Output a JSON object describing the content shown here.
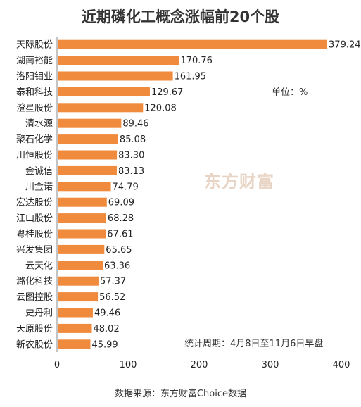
{
  "chart_data": {
    "type": "bar",
    "orientation": "horizontal",
    "title": "近期磷化工概念涨幅前20个股",
    "categories": [
      "天际股份",
      "湖南裕能",
      "洛阳钼业",
      "泰和科技",
      "澄星股份",
      "清水源",
      "聚石化学",
      "川恒股份",
      "金诚信",
      "川金诺",
      "宏达股份",
      "江山股份",
      "粤桂股份",
      "兴发集团",
      "云天化",
      "潞化科技",
      "云图控股",
      "史丹利",
      "天原股份",
      "新农股份"
    ],
    "values": [
      379.24,
      170.76,
      161.95,
      129.67,
      120.08,
      89.46,
      85.08,
      83.3,
      83.13,
      74.79,
      69.09,
      68.28,
      67.61,
      65.65,
      63.36,
      57.37,
      56.52,
      49.46,
      48.02,
      45.99
    ],
    "value_labels": [
      "379.24",
      "170.76",
      "161.95",
      "129.67",
      "120.08",
      "89.46",
      "85.08",
      "83.30",
      "83.13",
      "74.79",
      "69.09",
      "68.28",
      "67.61",
      "65.65",
      "63.36",
      "57.37",
      "56.52",
      "49.46",
      "48.02",
      "45.99"
    ],
    "xlim": [
      0,
      400
    ],
    "xticks": [
      "0",
      "100",
      "200",
      "300",
      "400"
    ],
    "bar_color": "#f08a3c",
    "grid": false,
    "unit_note": "单位：%",
    "period_note": "统计周期：4月8日至11月6日早盘",
    "source": "数据来源：东方财富Choice数据",
    "watermark": "东方财富"
  }
}
